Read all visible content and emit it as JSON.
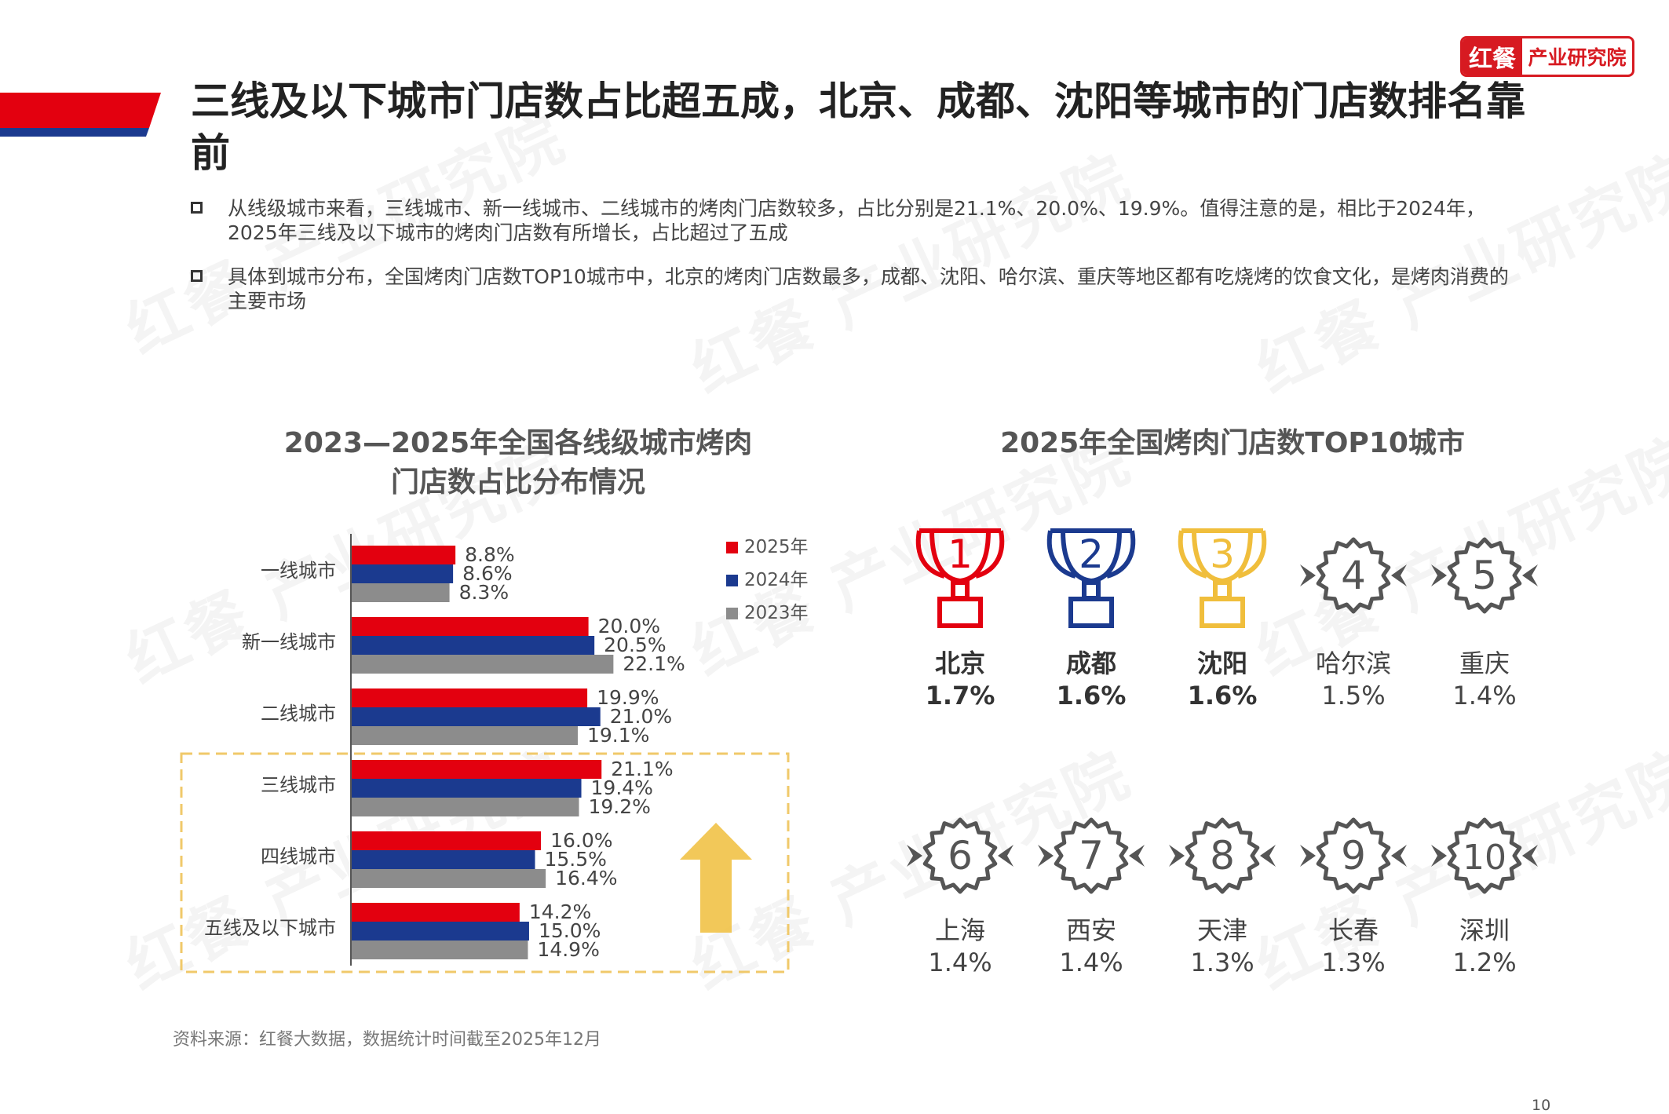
{
  "header": {
    "title": "三线及以下城市门店数占比超五成，北京、成都、沈阳等城市的门店数排名靠前",
    "logo_brand": "红餐",
    "logo_text": "产业研究院",
    "watermark": "红餐 产业研究院"
  },
  "bullets": [
    "从线级城市来看，三线城市、新一线城市、二线城市的烤肉门店数较多，占比分别是21.1%、20.0%、19.9%。值得注意的是，相比于2024年，2025年三线及以下城市的烤肉门店数有所增长，占比超过了五成",
    "具体到城市分布，全国烤肉门店数TOP10城市中，北京的烤肉门店数最多，成都、沈阳、哈尔滨、重庆等地区都有吃烧烤的饮食文化，是烤肉消费的主要市场"
  ],
  "colors": {
    "red": "#e3000f",
    "blue": "#1b3a8f",
    "gray": "#8c8c8c",
    "gold": "#f0be3c"
  },
  "chart_data": [
    {
      "type": "bar",
      "orientation": "horizontal",
      "title": "2023—2025年全国各线级城市烤肉门店数占比分布情况",
      "title_line1": "2023—2025年全国各线级城市烤肉",
      "title_line2": "门店数占比分布情况",
      "unit": "%",
      "categories": [
        "一线城市",
        "新一线城市",
        "二线城市",
        "三线城市",
        "四线城市",
        "五线及以下城市"
      ],
      "series": [
        {
          "name": "2025年",
          "color": "#e3000f",
          "values": [
            8.8,
            20.0,
            19.9,
            21.1,
            16.0,
            14.2
          ],
          "labels": [
            "8.8%",
            "20.0%",
            "19.9%",
            "21.1%",
            "16.0%",
            "14.2%"
          ]
        },
        {
          "name": "2024年",
          "color": "#1b3a8f",
          "values": [
            8.6,
            20.5,
            21.0,
            19.4,
            15.5,
            15.0
          ],
          "labels": [
            "8.6%",
            "20.5%",
            "21.0%",
            "19.4%",
            "15.5%",
            "15.0%"
          ]
        },
        {
          "name": "2023年",
          "color": "#8c8c8c",
          "values": [
            8.3,
            22.1,
            19.1,
            19.2,
            16.4,
            14.9
          ],
          "labels": [
            "8.3%",
            "22.1%",
            "19.1%",
            "19.2%",
            "16.4%",
            "14.9%"
          ]
        }
      ],
      "xlim": [
        0,
        30
      ],
      "highlight": {
        "from_category": "三线城市",
        "to_category": "五线及以下城市",
        "annotation": "up-arrow"
      },
      "legend": "top-right"
    },
    {
      "type": "ranking",
      "title": "2025年全国烤肉门店数TOP10城市",
      "items": [
        {
          "rank": "1",
          "city": "北京",
          "value": 1.7,
          "label": "1.7%",
          "badge": "trophy",
          "color": "#e3000f"
        },
        {
          "rank": "2",
          "city": "成都",
          "value": 1.6,
          "label": "1.6%",
          "badge": "trophy",
          "color": "#1b3a8f"
        },
        {
          "rank": "3",
          "city": "沈阳",
          "value": 1.6,
          "label": "1.6%",
          "badge": "trophy",
          "color": "#f0be3c"
        },
        {
          "rank": "4",
          "city": "哈尔滨",
          "value": 1.5,
          "label": "1.5%",
          "badge": "ribbon",
          "color": "#555555"
        },
        {
          "rank": "5",
          "city": "重庆",
          "value": 1.4,
          "label": "1.4%",
          "badge": "ribbon",
          "color": "#555555"
        },
        {
          "rank": "6",
          "city": "上海",
          "value": 1.4,
          "label": "1.4%",
          "badge": "ribbon",
          "color": "#555555"
        },
        {
          "rank": "7",
          "city": "西安",
          "value": 1.4,
          "label": "1.4%",
          "badge": "ribbon",
          "color": "#555555"
        },
        {
          "rank": "8",
          "city": "天津",
          "value": 1.3,
          "label": "1.3%",
          "badge": "ribbon",
          "color": "#555555"
        },
        {
          "rank": "9",
          "city": "长春",
          "value": 1.3,
          "label": "1.3%",
          "badge": "ribbon",
          "color": "#555555"
        },
        {
          "rank": "10",
          "city": "深圳",
          "value": 1.2,
          "label": "1.2%",
          "badge": "ribbon",
          "color": "#555555"
        }
      ]
    }
  ],
  "footer": {
    "source": "资料来源：红餐大数据，数据统计时间截至2025年12月",
    "page_number": "10"
  }
}
